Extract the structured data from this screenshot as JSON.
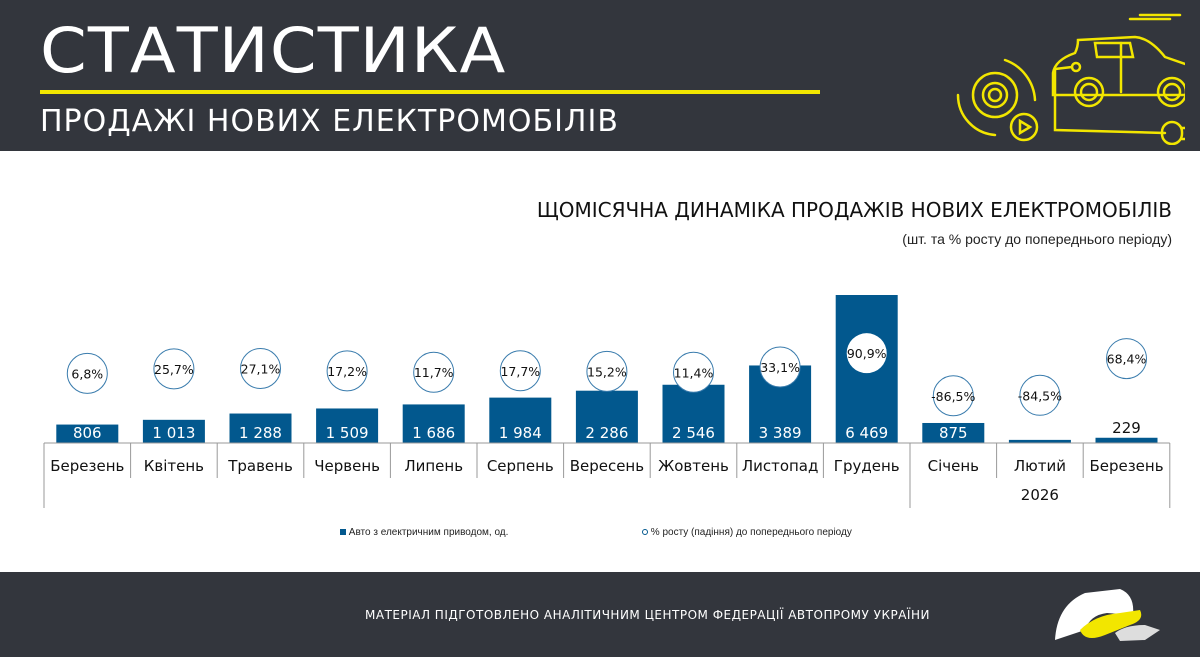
{
  "header": {
    "title": "СТАТИСТИКА",
    "subtitle": "ПРОДАЖІ НОВИХ ЕЛЕКТРОМОБІЛІВ",
    "accent_color": "#f2e600",
    "icon": "electric-car-charging-icon"
  },
  "chart_data": {
    "type": "bar",
    "title": "ЩОМІСЯЧНА ДИНАМІКА ПРОДАЖІВ НОВИХ ЕЛЕКТРОМОБІЛІВ",
    "subtitle": "(шт. та % росту до попереднього періоду)",
    "categories": [
      "Березень",
      "Квітень",
      "Травень",
      "Червень",
      "Липень",
      "Серпень",
      "Вересень",
      "Жовтень",
      "Листопад",
      "Грудень",
      "Січень",
      "Лютий",
      "Березень"
    ],
    "group_label": "2026",
    "series": [
      {
        "name": "Авто з електричним приводом, од.",
        "color": "#02588e",
        "values": [
          806,
          1013,
          1288,
          1509,
          1686,
          1984,
          2286,
          2546,
          3389,
          6469,
          875,
          136,
          229
        ],
        "labels": [
          "806",
          "1 013",
          "1 288",
          "1 509",
          "1 686",
          "1 984",
          "2 286",
          "2 546",
          "3 389",
          "6 469",
          "875",
          null,
          "229"
        ]
      },
      {
        "name": "% росту (падіння) до попереднього періоду",
        "values": [
          6.8,
          25.7,
          27.1,
          17.2,
          11.7,
          17.7,
          15.2,
          11.4,
          33.1,
          90.9,
          -86.5,
          -84.5,
          68.4
        ],
        "labels": [
          "6,8%",
          "25,7%",
          "27,1%",
          "17,2%",
          "11,7%",
          "17,7%",
          "15,2%",
          "11,4%",
          "33,1%",
          "90,9%",
          "-86,5%",
          "-84,5%",
          "68,4%"
        ]
      }
    ],
    "legend_position": "bottom"
  },
  "footer": {
    "text": "МАТЕРІАЛ ПІДГОТОВЛЕНО АНАЛІТИЧНИМ ЦЕНТРОМ ФЕДЕРАЦІЇ АВТОПРОМУ УКРАЇНИ",
    "logo": "federation-logo-car"
  }
}
